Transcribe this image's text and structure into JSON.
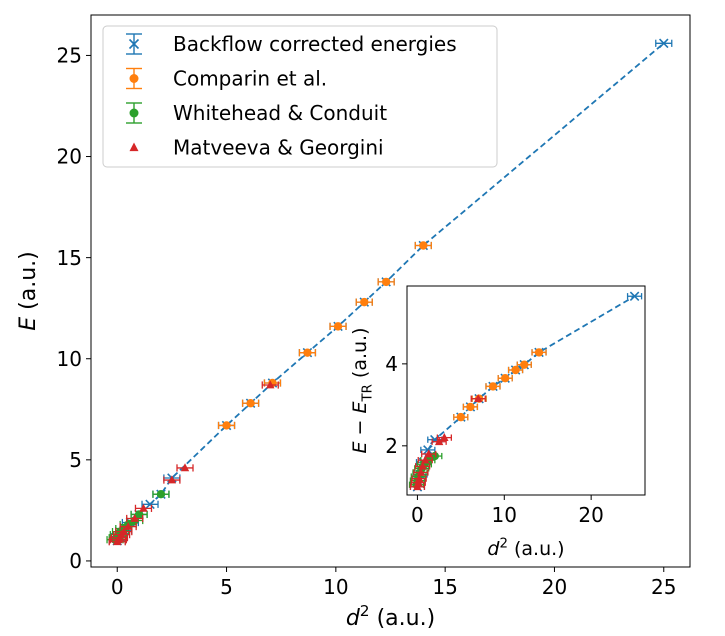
{
  "chart_data": [
    {
      "type": "scatter",
      "name": "main",
      "xlabel_base": "d",
      "xlabel_sup": "2",
      "xlabel_unit": "(a.u.)",
      "ylabel_base": "E",
      "ylabel_unit": "(a.u.)",
      "xlim": [
        -1.2,
        26.2
      ],
      "ylim": [
        -0.3,
        27.0
      ],
      "xticks": [
        0,
        5,
        10,
        15,
        20,
        25
      ],
      "yticks": [
        0,
        5,
        10,
        15,
        20,
        25
      ],
      "legend_position": "top-left",
      "series": [
        {
          "name": "Backflow corrected energies",
          "marker": "x",
          "color": "#1f77b4",
          "line": "dashed",
          "points": [
            [
              0.0,
              1.0
            ],
            [
              0.1,
              1.2
            ],
            [
              0.3,
              1.5
            ],
            [
              0.6,
              1.9
            ],
            [
              1.0,
              2.3
            ],
            [
              1.5,
              2.8
            ],
            [
              2.0,
              3.3
            ],
            [
              2.5,
              4.1
            ],
            [
              5.0,
              6.7
            ],
            [
              6.1,
              7.8
            ],
            [
              7.1,
              8.8
            ],
            [
              8.7,
              10.3
            ],
            [
              10.1,
              11.6
            ],
            [
              11.3,
              12.8
            ],
            [
              12.3,
              13.8
            ],
            [
              14.0,
              15.6
            ],
            [
              25.0,
              25.6
            ]
          ]
        },
        {
          "name": "Comparin et al.",
          "marker": "o",
          "color": "#ff7f0e",
          "points": [
            [
              5.0,
              6.7
            ],
            [
              6.1,
              7.8
            ],
            [
              7.1,
              8.8
            ],
            [
              8.7,
              10.3
            ],
            [
              10.1,
              11.6
            ],
            [
              11.3,
              12.8
            ],
            [
              12.3,
              13.8
            ],
            [
              14.0,
              15.6
            ]
          ]
        },
        {
          "name": "Whitehead & Conduit",
          "marker": "o",
          "color": "#2ca02c",
          "points": [
            [
              -0.1,
              1.05
            ],
            [
              0.0,
              1.15
            ],
            [
              0.05,
              1.3
            ],
            [
              0.15,
              1.45
            ],
            [
              0.3,
              1.6
            ],
            [
              0.5,
              1.8
            ],
            [
              0.8,
              2.0
            ],
            [
              1.0,
              2.3
            ],
            [
              2.0,
              3.3
            ]
          ]
        },
        {
          "name": "Matveeva & Georgini",
          "marker": "^",
          "color": "#d62728",
          "points": [
            [
              0.0,
              0.95
            ],
            [
              0.05,
              1.05
            ],
            [
              0.1,
              1.15
            ],
            [
              0.2,
              1.3
            ],
            [
              0.3,
              1.45
            ],
            [
              0.5,
              1.7
            ],
            [
              0.8,
              2.1
            ],
            [
              1.2,
              2.6
            ],
            [
              2.5,
              4.0
            ],
            [
              3.1,
              4.6
            ],
            [
              7.0,
              8.7
            ]
          ]
        }
      ]
    },
    {
      "type": "scatter",
      "name": "inset",
      "xlabel_base": "d",
      "xlabel_sup": "2",
      "xlabel_unit": "(a.u.)",
      "ylabel_base": "E − E",
      "ylabel_sub": "TR",
      "ylabel_unit": "(a.u.)",
      "xlim": [
        -1.2,
        26.2
      ],
      "ylim": [
        0.8,
        5.9
      ],
      "xticks": [
        0,
        10,
        20
      ],
      "yticks": [
        2,
        4
      ],
      "series": [
        {
          "name": "Backflow corrected energies",
          "marker": "x",
          "color": "#1f77b4",
          "line": "dashed",
          "points": [
            [
              0.0,
              1.0
            ],
            [
              0.3,
              1.3
            ],
            [
              0.7,
              1.6
            ],
            [
              1.2,
              1.9
            ],
            [
              2.0,
              2.15
            ],
            [
              5.0,
              2.7
            ],
            [
              6.1,
              2.95
            ],
            [
              7.1,
              3.15
            ],
            [
              8.7,
              3.45
            ],
            [
              10.1,
              3.65
            ],
            [
              11.3,
              3.85
            ],
            [
              12.3,
              3.98
            ],
            [
              14.0,
              4.28
            ],
            [
              25.0,
              5.65
            ]
          ]
        },
        {
          "name": "Comparin et al.",
          "marker": "o",
          "color": "#ff7f0e",
          "points": [
            [
              5.0,
              2.7
            ],
            [
              6.1,
              2.95
            ],
            [
              7.1,
              3.15
            ],
            [
              8.7,
              3.45
            ],
            [
              10.1,
              3.65
            ],
            [
              11.3,
              3.85
            ],
            [
              12.3,
              3.98
            ],
            [
              14.0,
              4.28
            ]
          ]
        },
        {
          "name": "Whitehead & Conduit",
          "marker": "o",
          "color": "#2ca02c",
          "points": [
            [
              -0.1,
              1.05
            ],
            [
              0.0,
              1.15
            ],
            [
              0.1,
              1.25
            ],
            [
              0.3,
              1.35
            ],
            [
              0.5,
              1.45
            ],
            [
              0.8,
              1.55
            ],
            [
              1.2,
              1.65
            ],
            [
              2.0,
              1.75
            ]
          ]
        },
        {
          "name": "Matveeva & Georgini",
          "marker": "^",
          "color": "#d62728",
          "points": [
            [
              0.0,
              1.0
            ],
            [
              0.1,
              1.1
            ],
            [
              0.2,
              1.2
            ],
            [
              0.4,
              1.35
            ],
            [
              0.6,
              1.5
            ],
            [
              0.9,
              1.65
            ],
            [
              1.3,
              1.8
            ],
            [
              2.5,
              2.1
            ],
            [
              3.1,
              2.2
            ],
            [
              7.0,
              3.15
            ]
          ]
        }
      ]
    }
  ]
}
